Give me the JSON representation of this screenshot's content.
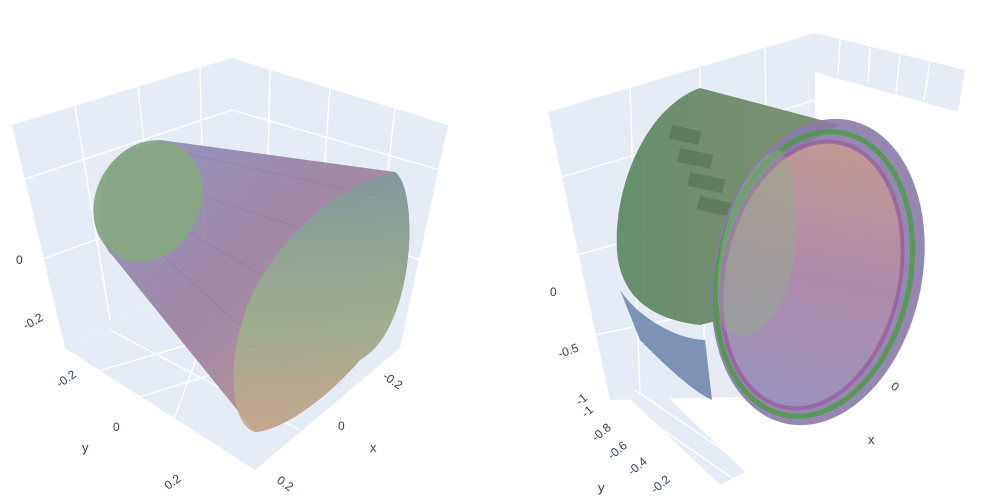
{
  "chart_data": [
    {
      "type": "mesh3d",
      "shape": "truncated cone (frustum) with transparent surface",
      "grid": true,
      "background_color": "#e5ecf6",
      "x_axis": {
        "title": "x",
        "ticks": [
          "-0.2",
          "0",
          "0.2"
        ]
      },
      "y_axis": {
        "title": "y",
        "ticks": [
          "-0.2",
          "0",
          "0.2"
        ]
      },
      "z_axis": {
        "title": "",
        "ticks": [
          "0",
          "-0.2"
        ]
      },
      "colors": {
        "surface_warm": "#b27a80",
        "surface_cool": "#8a8cc0",
        "cap_small": "#86a882",
        "cap_large": "#8fae8c"
      }
    },
    {
      "type": "mesh3d",
      "shape": "cylinder with annular ring at open end",
      "grid": true,
      "background_color": "#e5ecf6",
      "x_axis": {
        "title": "x",
        "ticks": [
          "0"
        ]
      },
      "y_axis": {
        "title": "y",
        "ticks": [
          "-1",
          "-0.8",
          "-0.6",
          "-0.4",
          "-0.2"
        ]
      },
      "z_axis": {
        "title": "",
        "ticks": [
          "0",
          "-0.5",
          "-1"
        ]
      },
      "colors": {
        "cylinder": "#6f8f70",
        "ring": "#9a6fa6",
        "ring_edge": "#4f9a4a",
        "inner": "#b08aa0"
      }
    }
  ]
}
